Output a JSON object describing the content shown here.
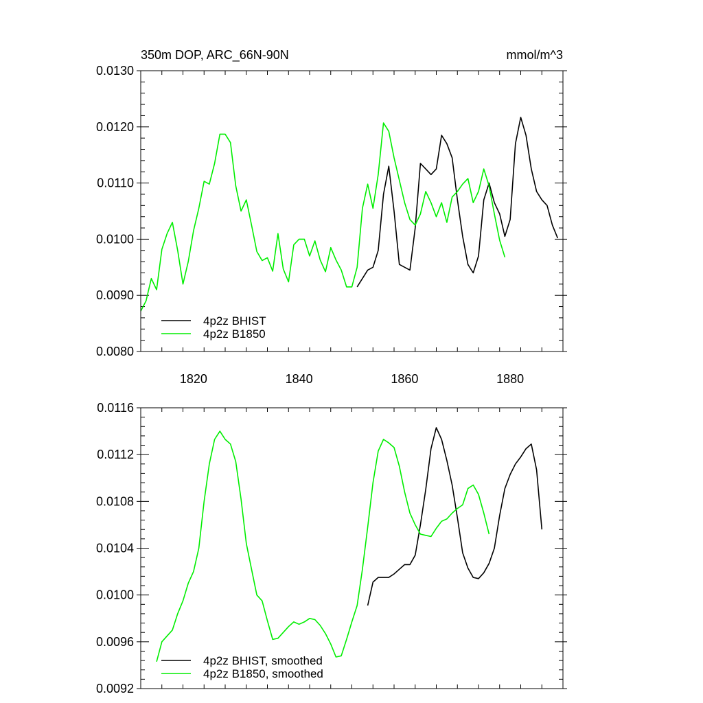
{
  "chart_data": [
    {
      "type": "line",
      "title": "350m DOP, ARC_66N-90N",
      "units": "mmol/m^3",
      "xlim": [
        1810,
        1890
      ],
      "ylim": [
        0.008,
        0.013
      ],
      "xticks": [
        1820,
        1840,
        1860,
        1880
      ],
      "yticks": [
        0.008,
        0.009,
        0.01,
        0.011,
        0.012,
        0.013
      ],
      "ytick_labels": [
        "0.0080",
        "0.0090",
        "0.0100",
        "0.0110",
        "0.0120",
        "0.0130"
      ],
      "xtick_labels": [
        "1820",
        "1840",
        "1860",
        "1880"
      ],
      "legend_position": "bottom-left",
      "series": [
        {
          "name": "4p2z BHIST",
          "color": "#000000",
          "x": [
            1851,
            1852,
            1853,
            1854,
            1855,
            1856,
            1857,
            1858,
            1859,
            1860,
            1861,
            1862,
            1863,
            1864,
            1865,
            1866,
            1867,
            1868,
            1869,
            1870,
            1871,
            1872,
            1873,
            1874,
            1875,
            1876,
            1877,
            1878,
            1879,
            1880,
            1881,
            1882,
            1883,
            1884,
            1885,
            1886,
            1887,
            1888,
            1889
          ],
          "y": [
            0.00915,
            0.0093,
            0.00945,
            0.0095,
            0.0098,
            0.0108,
            0.0113,
            0.0105,
            0.00955,
            0.0095,
            0.00945,
            0.0102,
            0.01135,
            0.01125,
            0.01115,
            0.01125,
            0.01185,
            0.0117,
            0.01145,
            0.0107,
            0.01005,
            0.00955,
            0.0094,
            0.0097,
            0.0107,
            0.011,
            0.01065,
            0.01045,
            0.01005,
            0.01035,
            0.0117,
            0.01217,
            0.01185,
            0.01125,
            0.01085,
            0.0107,
            0.0106,
            0.01025,
            0.01002
          ]
        },
        {
          "name": "4p2z B1850",
          "color": "#00ee00",
          "x": [
            1810,
            1811,
            1812,
            1813,
            1814,
            1815,
            1816,
            1817,
            1818,
            1819,
            1820,
            1821,
            1822,
            1823,
            1824,
            1825,
            1826,
            1827,
            1828,
            1829,
            1830,
            1831,
            1832,
            1833,
            1834,
            1835,
            1836,
            1837,
            1838,
            1839,
            1840,
            1841,
            1842,
            1843,
            1844,
            1845,
            1846,
            1847,
            1848,
            1849,
            1850,
            1851,
            1852,
            1853,
            1854,
            1855,
            1856,
            1857,
            1858,
            1859,
            1860,
            1861,
            1862,
            1863,
            1864,
            1865,
            1866,
            1867,
            1868,
            1869,
            1870,
            1871,
            1872,
            1873,
            1874,
            1875,
            1876,
            1877,
            1878,
            1879
          ],
          "y": [
            0.00872,
            0.0089,
            0.0093,
            0.0091,
            0.00982,
            0.0101,
            0.0103,
            0.0098,
            0.0092,
            0.0096,
            0.01015,
            0.01055,
            0.01103,
            0.01098,
            0.01135,
            0.01187,
            0.01187,
            0.01172,
            0.01095,
            0.0105,
            0.0107,
            0.01025,
            0.00978,
            0.00962,
            0.00967,
            0.00943,
            0.0101,
            0.00947,
            0.00924,
            0.0099,
            0.01,
            0.01,
            0.0097,
            0.00997,
            0.00963,
            0.00942,
            0.00985,
            0.00963,
            0.00945,
            0.00915,
            0.00915,
            0.0095,
            0.01055,
            0.01098,
            0.01055,
            0.01115,
            0.01207,
            0.01192,
            0.01145,
            0.01105,
            0.01065,
            0.01035,
            0.01025,
            0.01045,
            0.01085,
            0.01065,
            0.0104,
            0.01065,
            0.0103,
            0.01075,
            0.01085,
            0.01098,
            0.01108,
            0.01065,
            0.01085,
            0.01125,
            0.01095,
            0.01045,
            0.00998,
            0.00968
          ]
        }
      ]
    },
    {
      "type": "line",
      "xlim": [
        1810,
        1890
      ],
      "ylim": [
        0.0092,
        0.0116
      ],
      "xticks": [
        1820,
        1840,
        1860,
        1880
      ],
      "yticks": [
        0.0092,
        0.0096,
        0.01,
        0.0104,
        0.0108,
        0.0112,
        0.0116
      ],
      "ytick_labels": [
        "0.0092",
        "0.0096",
        "0.0100",
        "0.0104",
        "0.0108",
        "0.0112",
        "0.0116"
      ],
      "legend_position": "bottom-left",
      "series": [
        {
          "name": "4p2z BHIST, smoothed",
          "color": "#000000",
          "x": [
            1853,
            1854,
            1855,
            1856,
            1857,
            1858,
            1859,
            1860,
            1861,
            1862,
            1863,
            1864,
            1865,
            1866,
            1867,
            1868,
            1869,
            1870,
            1871,
            1872,
            1873,
            1874,
            1875,
            1876,
            1877,
            1878,
            1879,
            1880,
            1881,
            1882,
            1883,
            1884,
            1885,
            1886
          ],
          "y": [
            0.00991,
            0.01011,
            0.01015,
            0.01015,
            0.01015,
            0.01018,
            0.01022,
            0.01026,
            0.01026,
            0.01034,
            0.0106,
            0.0109,
            0.01125,
            0.01143,
            0.01133,
            0.01115,
            0.01094,
            0.01066,
            0.01036,
            0.01023,
            0.01015,
            0.01014,
            0.01019,
            0.01027,
            0.0104,
            0.01068,
            0.01091,
            0.01103,
            0.01112,
            0.01118,
            0.01125,
            0.01129,
            0.01107,
            0.01056
          ]
        },
        {
          "name": "4p2z B1850, smoothed",
          "color": "#00ee00",
          "x": [
            1813,
            1814,
            1815,
            1816,
            1817,
            1818,
            1819,
            1820,
            1821,
            1822,
            1823,
            1824,
            1825,
            1826,
            1827,
            1828,
            1829,
            1830,
            1831,
            1832,
            1833,
            1834,
            1835,
            1836,
            1837,
            1838,
            1839,
            1840,
            1841,
            1842,
            1843,
            1844,
            1845,
            1846,
            1847,
            1848,
            1849,
            1850,
            1851,
            1852,
            1853,
            1854,
            1855,
            1856,
            1857,
            1858,
            1859,
            1860,
            1861,
            1862,
            1863,
            1864,
            1865,
            1866,
            1867,
            1868,
            1869,
            1870,
            1871,
            1872,
            1873,
            1874,
            1875,
            1876
          ],
          "y": [
            0.00943,
            0.0096,
            0.00965,
            0.0097,
            0.00984,
            0.00995,
            0.0101,
            0.0102,
            0.0104,
            0.0108,
            0.01112,
            0.01133,
            0.0114,
            0.01133,
            0.01129,
            0.01114,
            0.01082,
            0.01044,
            0.01022,
            0.01,
            0.00995,
            0.00978,
            0.00962,
            0.00963,
            0.00968,
            0.00973,
            0.00977,
            0.00975,
            0.00977,
            0.0098,
            0.00979,
            0.00974,
            0.00967,
            0.00958,
            0.00947,
            0.00948,
            0.00962,
            0.00977,
            0.00991,
            0.01022,
            0.01058,
            0.01096,
            0.01123,
            0.01133,
            0.0113,
            0.01126,
            0.0111,
            0.01088,
            0.0107,
            0.0106,
            0.01052,
            0.01051,
            0.0105,
            0.01057,
            0.01063,
            0.01065,
            0.0107,
            0.01074,
            0.01077,
            0.01091,
            0.01094,
            0.01086,
            0.0107,
            0.01052
          ]
        }
      ]
    }
  ]
}
